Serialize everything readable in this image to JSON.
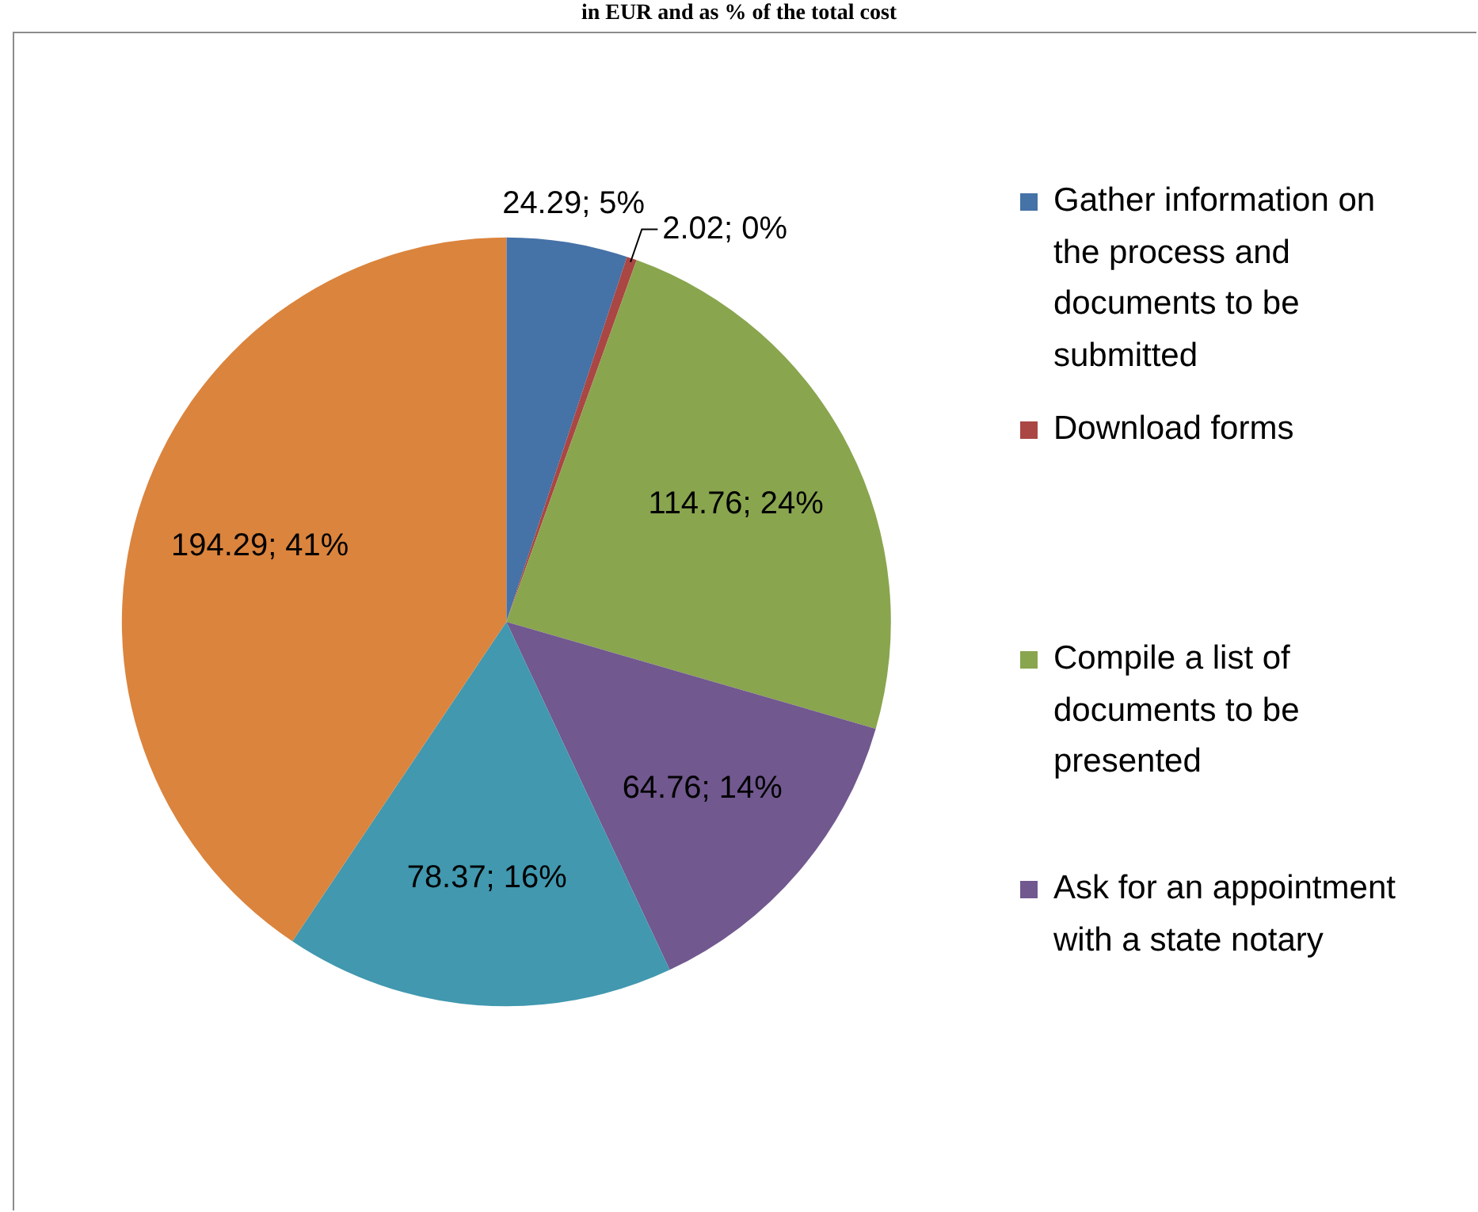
{
  "chart_data": {
    "type": "pie",
    "title": "in EUR and as % of the total cost",
    "categories": [
      "Gather information on the process and documents to be submitted",
      "Download forms",
      "Compile a list of documents to be presented",
      "Ask for an appointment with a state notary",
      null,
      null
    ],
    "values": [
      24.29,
      2.02,
      114.76,
      64.76,
      78.37,
      194.29
    ],
    "colors": [
      "#4572a7",
      "#aa4643",
      "#89a54e",
      "#71588f",
      "#4198af",
      "#db843d"
    ],
    "value_labels": [
      "24.29; 5%",
      "2.02; 0%",
      "114.76; 24%",
      "64.76; 14%",
      "78.37; 16%",
      "194.29; 41%"
    ],
    "legend": "right"
  }
}
